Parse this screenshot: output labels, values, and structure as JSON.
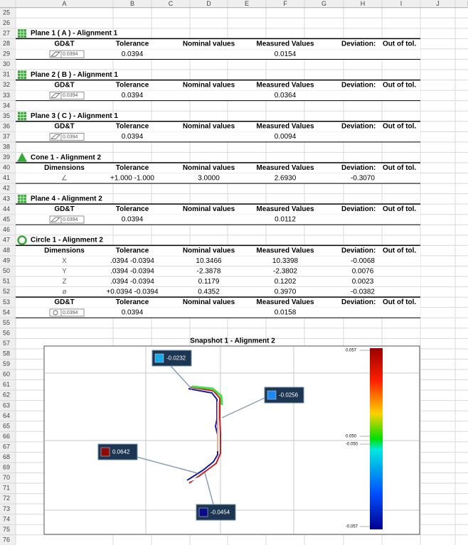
{
  "column_headers": [
    "A",
    "B",
    "C",
    "D",
    "E",
    "F",
    "G",
    "H",
    "I",
    "J",
    "K"
  ],
  "row_numbers": [
    25,
    26,
    27,
    28,
    29,
    30,
    31,
    32,
    33,
    34,
    35,
    36,
    37,
    38,
    39,
    40,
    41,
    42,
    43,
    44,
    45,
    46,
    47,
    48,
    49,
    50,
    51,
    52,
    53,
    54,
    55,
    56,
    57,
    58,
    59,
    60,
    61,
    62,
    63,
    64,
    65,
    66,
    67,
    68,
    69,
    70,
    71,
    72,
    73,
    74,
    75,
    76
  ],
  "sections": [
    {
      "title": "Plane 1 ( A ) - Alignment 1",
      "icon": "plane",
      "blocks": [
        {
          "header": [
            "GD&T",
            "Tolerance",
            "Nominal values",
            "Measured Values",
            "Deviation:",
            "Out of tol."
          ],
          "rows": [
            [
              {
                "box": "0.0394"
              },
              "0.0394",
              null,
              "0.0154",
              null
            ]
          ]
        }
      ]
    },
    {
      "title": "Plane 2 ( B ) - Alignment 1",
      "icon": "plane",
      "blocks": [
        {
          "header": [
            "GD&T",
            "Tolerance",
            "Nominal values",
            "Measured Values",
            "Deviation:",
            "Out of tol."
          ],
          "rows": [
            [
              {
                "box": "0.0394"
              },
              "0.0394",
              null,
              "0.0364",
              null
            ]
          ]
        }
      ]
    },
    {
      "title": "Plane 3 ( C ) - Alignment 1",
      "icon": "plane",
      "blocks": [
        {
          "header": [
            "GD&T",
            "Tolerance",
            "Nominal values",
            "Measured Values",
            "Deviation:",
            "Out of tol."
          ],
          "rows": [
            [
              {
                "box": "0.0394"
              },
              "0.0394",
              null,
              "0.0094",
              null
            ]
          ]
        }
      ]
    },
    {
      "title": "Cone 1 - Alignment 2",
      "icon": "cone",
      "blocks": [
        {
          "header": [
            "Dimensions",
            "Tolerance",
            "Nominal values",
            "Measured Values",
            "Deviation:",
            "Out of tol."
          ],
          "rows": [
            [
              "∠",
              "+1.000 -1.000",
              "3.0000",
              "2.6930",
              "-0.3070"
            ]
          ]
        }
      ]
    },
    {
      "title": "Plane 4 - Alignment 2",
      "icon": "plane",
      "blocks": [
        {
          "header": [
            "GD&T",
            "Tolerance",
            "Nominal values",
            "Measured Values",
            "Deviation:",
            "Out of tol."
          ],
          "rows": [
            [
              {
                "box": "0.0394"
              },
              "0.0394",
              null,
              "0.0112",
              null
            ]
          ]
        }
      ]
    },
    {
      "title": "Circle 1 - Alignment 2",
      "icon": "circle",
      "blocks": [
        {
          "header": [
            "Dimensions",
            "Tolerance",
            "Nominal values",
            "Measured Values",
            "Deviation:",
            "Out of tol."
          ],
          "rows": [
            [
              "X",
              ".0394 -0.0394",
              "10.3466",
              "10.3398",
              "-0.0068"
            ],
            [
              "Y",
              ".0394 -0.0394",
              "-2.3878",
              "-2.3802",
              "0.0076"
            ],
            [
              "Z",
              ".0394 -0.0394",
              "0.1179",
              "0.1202",
              "0.0023"
            ],
            [
              "ø",
              "+0.0394 -0.0394",
              "0.4352",
              "0.3970",
              "-0.0382"
            ]
          ]
        },
        {
          "header": [
            "GD&T",
            "Tolerance",
            "Nominal values",
            "Measured Values",
            "Deviation:",
            "Out of tol."
          ],
          "rows": [
            [
              {
                "box": "0.0394"
              },
              "0.0394",
              null,
              "0.0158",
              null
            ]
          ]
        }
      ]
    }
  ],
  "snapshot": {
    "title": "Snapshot 1 - Alignment 2",
    "scale_labels": [
      "0.057",
      "0.050",
      "-0.050",
      "-0.057"
    ],
    "callouts": [
      {
        "label": "-0.0232",
        "color": "#1aa8e6"
      },
      {
        "label": "-0.0256",
        "color": "#1e88f0"
      },
      {
        "label": "0.0642",
        "color": "#8b0a0a"
      },
      {
        "label": "-0.0454",
        "color": "#0a0a8a"
      }
    ]
  }
}
